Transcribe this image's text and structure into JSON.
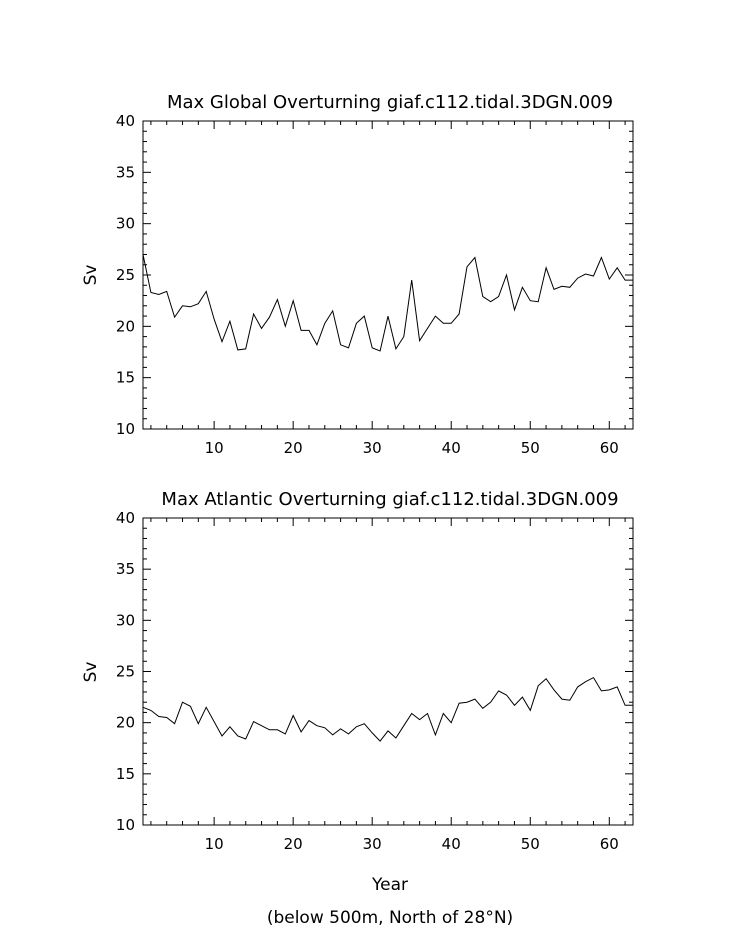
{
  "chart_data": [
    {
      "type": "line",
      "title": "Max Global Overturning giaf.c112.tidal.3DGN.009",
      "xlabel": "",
      "ylabel": "Sv",
      "xlim": [
        1,
        63
      ],
      "ylim": [
        10,
        40
      ],
      "x_ticks": [
        10,
        20,
        30,
        40,
        50,
        60
      ],
      "y_ticks": [
        10,
        15,
        20,
        25,
        30,
        35,
        40
      ],
      "grid": false,
      "x": [
        1,
        2,
        3,
        4,
        5,
        6,
        7,
        8,
        9,
        10,
        11,
        12,
        13,
        14,
        15,
        16,
        17,
        18,
        19,
        20,
        21,
        22,
        23,
        24,
        25,
        26,
        27,
        28,
        29,
        30,
        31,
        32,
        33,
        34,
        35,
        36,
        37,
        38,
        39,
        40,
        41,
        42,
        43,
        44,
        45,
        46,
        47,
        48,
        49,
        50,
        51,
        52,
        53,
        54,
        55,
        56,
        57,
        58,
        59,
        60,
        61,
        62,
        63
      ],
      "values": [
        27.0,
        23.3,
        23.1,
        23.4,
        20.9,
        22.0,
        21.9,
        22.2,
        23.4,
        20.7,
        18.5,
        20.5,
        17.7,
        17.8,
        21.2,
        19.8,
        20.9,
        22.6,
        20.0,
        22.5,
        19.6,
        19.6,
        18.2,
        20.3,
        21.5,
        18.2,
        17.9,
        20.3,
        21.0,
        17.9,
        17.6,
        21.0,
        17.8,
        19.0,
        24.5,
        18.6,
        19.8,
        21.0,
        20.3,
        20.3,
        21.2,
        25.8,
        26.7,
        22.9,
        22.4,
        22.9,
        25.0,
        21.6,
        23.8,
        22.5,
        22.4,
        25.7,
        23.6,
        23.9,
        23.8,
        24.7,
        25.1,
        24.9,
        26.7,
        24.6,
        25.7,
        24.5,
        24.5
      ]
    },
    {
      "type": "line",
      "title": "Max Atlantic Overturning giaf.c112.tidal.3DGN.009",
      "xlabel": "Year",
      "ylabel": "Sv",
      "note": "(below 500m, North of 28°N)",
      "xlim": [
        1,
        63
      ],
      "ylim": [
        10,
        40
      ],
      "x_ticks": [
        10,
        20,
        30,
        40,
        50,
        60
      ],
      "y_ticks": [
        10,
        15,
        20,
        25,
        30,
        35,
        40
      ],
      "grid": false,
      "x": [
        1,
        2,
        3,
        4,
        5,
        6,
        7,
        8,
        9,
        10,
        11,
        12,
        13,
        14,
        15,
        16,
        17,
        18,
        19,
        20,
        21,
        22,
        23,
        24,
        25,
        26,
        27,
        28,
        29,
        30,
        31,
        32,
        33,
        34,
        35,
        36,
        37,
        38,
        39,
        40,
        41,
        42,
        43,
        44,
        45,
        46,
        47,
        48,
        49,
        50,
        51,
        52,
        53,
        54,
        55,
        56,
        57,
        58,
        59,
        60,
        61,
        62,
        63
      ],
      "values": [
        21.5,
        21.2,
        20.6,
        20.5,
        19.9,
        22.0,
        21.6,
        19.9,
        21.5,
        20.1,
        18.7,
        19.6,
        18.7,
        18.4,
        20.1,
        19.7,
        19.3,
        19.3,
        18.9,
        20.7,
        19.1,
        20.2,
        19.7,
        19.5,
        18.8,
        19.4,
        18.9,
        19.6,
        19.9,
        19.0,
        18.2,
        19.2,
        18.5,
        19.7,
        20.9,
        20.3,
        20.9,
        18.8,
        20.9,
        20.0,
        21.9,
        22.0,
        22.3,
        21.4,
        22.0,
        23.1,
        22.7,
        21.7,
        22.5,
        21.2,
        23.6,
        24.3,
        23.2,
        22.3,
        22.2,
        23.5,
        24.0,
        24.4,
        23.1,
        23.2,
        23.5,
        21.7,
        21.7
      ]
    }
  ]
}
